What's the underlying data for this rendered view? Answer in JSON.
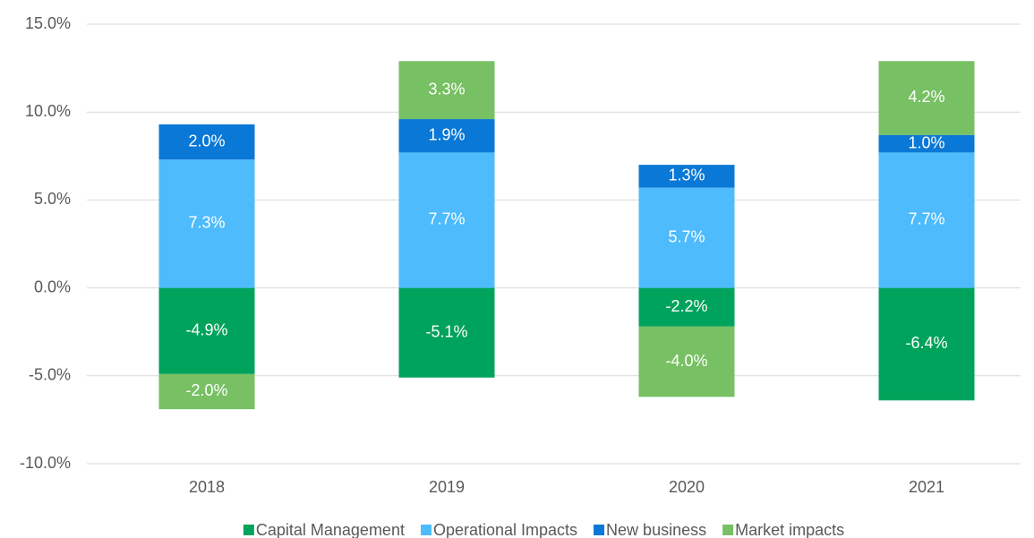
{
  "chart_data": {
    "type": "stacked-bar",
    "categories": [
      "2018",
      "2019",
      "2020",
      "2021"
    ],
    "series": [
      {
        "name": "Capital Management",
        "color": "#00a35c",
        "values": [
          -4.9,
          -5.1,
          -2.2,
          -6.4
        ],
        "value_labels": [
          "-4.9%",
          "-5.1%",
          "-2.2%",
          "-6.4%"
        ]
      },
      {
        "name": "Operational Impacts",
        "color": "#4dbbfc",
        "values": [
          7.3,
          7.7,
          5.7,
          7.7
        ],
        "value_labels": [
          "7.3%",
          "7.7%",
          "5.7%",
          "7.7%"
        ]
      },
      {
        "name": "New business",
        "color": "#0a78d6",
        "values": [
          2.0,
          1.9,
          1.3,
          1.0
        ],
        "value_labels": [
          "2.0%",
          "1.9%",
          "1.3%",
          "1.0%"
        ]
      },
      {
        "name": "Market impacts",
        "color": "#77c063",
        "values": [
          -2.0,
          3.3,
          -4.0,
          4.2
        ],
        "value_labels": [
          "-2.0%",
          "3.3%",
          "-4.0%",
          "4.2%"
        ]
      }
    ],
    "ylim": [
      -10,
      15
    ],
    "yticks": [
      {
        "value": -10,
        "label": "-10.0%"
      },
      {
        "value": -5,
        "label": "-5.0%"
      },
      {
        "value": 0,
        "label": "0.0%"
      },
      {
        "value": 5,
        "label": "5.0%"
      },
      {
        "value": 10,
        "label": "10.0%"
      },
      {
        "value": 15,
        "label": "15.0%"
      }
    ],
    "grid": true,
    "legend": "bottom"
  }
}
